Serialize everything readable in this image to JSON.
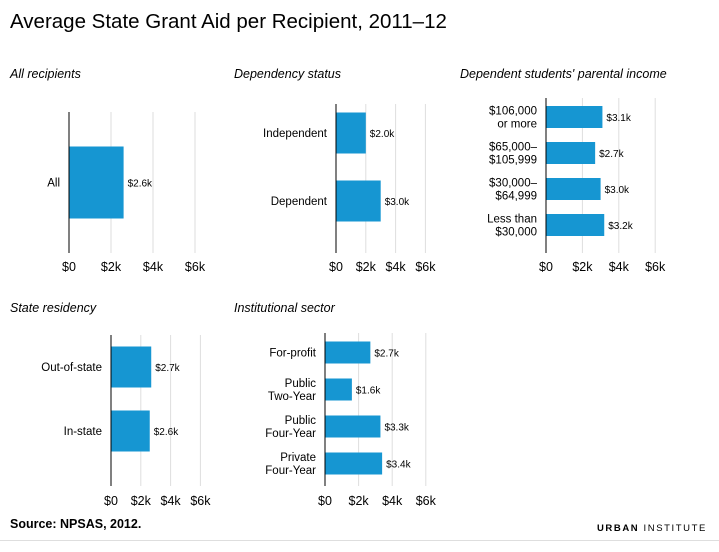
{
  "title": "Average State Grant Aid per Recipient, 2011–12",
  "source": "Source: NPSAS, 2012.",
  "brand": {
    "part1": "URBAN",
    "part2": " INSTITUTE"
  },
  "colors": {
    "bar": "#1696d2",
    "grid": "#dedede",
    "axis": "#000000"
  },
  "chart_data": [
    {
      "type": "bar",
      "orientation": "horizontal",
      "title": "All recipients",
      "categories": [
        [
          "All"
        ]
      ],
      "values": [
        2.6
      ],
      "value_labels": [
        "$2.6k"
      ],
      "xlim": [
        0,
        6
      ],
      "xticks": [
        0,
        2,
        4,
        6
      ],
      "xtick_labels": [
        "$0",
        "$2k",
        "$4k",
        "$6k"
      ]
    },
    {
      "type": "bar",
      "orientation": "horizontal",
      "title": "Dependency status",
      "categories": [
        [
          "Independent"
        ],
        [
          "Dependent"
        ]
      ],
      "values": [
        2.0,
        3.0
      ],
      "value_labels": [
        "$2.0k",
        "$3.0k"
      ],
      "xlim": [
        0,
        6
      ],
      "xticks": [
        0,
        2,
        4,
        6
      ],
      "xtick_labels": [
        "$0",
        "$2k",
        "$4k",
        "$6k"
      ]
    },
    {
      "type": "bar",
      "orientation": "horizontal",
      "title": "Dependent students' parental income",
      "categories": [
        [
          "$106,000",
          "or more"
        ],
        [
          "$65,000–",
          "$105,999"
        ],
        [
          "$30,000–",
          "$64,999"
        ],
        [
          "Less than",
          "$30,000"
        ]
      ],
      "values": [
        3.1,
        2.7,
        3.0,
        3.2
      ],
      "value_labels": [
        "$3.1k",
        "$2.7k",
        "$3.0k",
        "$3.2k"
      ],
      "xlim": [
        0,
        6
      ],
      "xticks": [
        0,
        2,
        4,
        6
      ],
      "xtick_labels": [
        "$0",
        "$2k",
        "$4k",
        "$6k"
      ]
    },
    {
      "type": "bar",
      "orientation": "horizontal",
      "title": "State residency",
      "categories": [
        [
          "Out-of-state"
        ],
        [
          "In-state"
        ]
      ],
      "values": [
        2.7,
        2.6
      ],
      "value_labels": [
        "$2.7k",
        "$2.6k"
      ],
      "xlim": [
        0,
        6
      ],
      "xticks": [
        0,
        2,
        4,
        6
      ],
      "xtick_labels": [
        "$0",
        "$2k",
        "$4k",
        "$6k"
      ]
    },
    {
      "type": "bar",
      "orientation": "horizontal",
      "title": "Institutional sector",
      "categories": [
        [
          "For-profit"
        ],
        [
          "Public",
          "Two-Year"
        ],
        [
          "Public",
          "Four-Year"
        ],
        [
          "Private",
          "Four-Year"
        ]
      ],
      "values": [
        2.7,
        1.6,
        3.3,
        3.4
      ],
      "value_labels": [
        "$2.7k",
        "$1.6k",
        "$3.3k",
        "$3.4k"
      ],
      "xlim": [
        0,
        6
      ],
      "xticks": [
        0,
        2,
        4,
        6
      ],
      "xtick_labels": [
        "$0",
        "$2k",
        "$4k",
        "$6k"
      ]
    }
  ]
}
